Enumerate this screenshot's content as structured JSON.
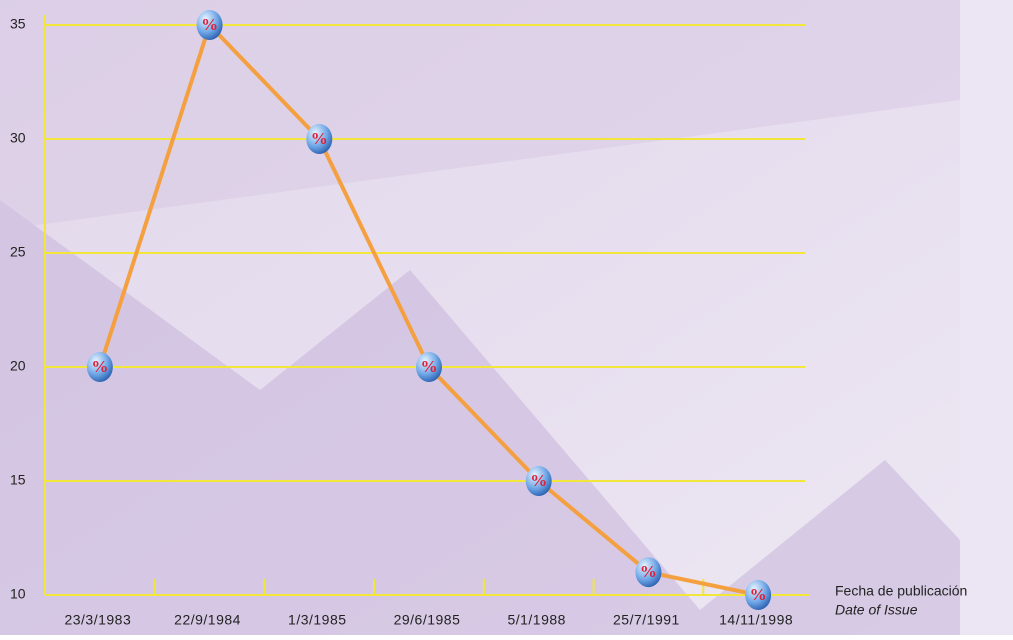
{
  "chart_data": {
    "type": "line",
    "x_label": "Fecha de publicación",
    "x_label_secondary": "Date of Issue",
    "categories": [
      "23/3/1983",
      "22/9/1984",
      "1/3/1985",
      "29/6/1985",
      "5/1/1988",
      "25/7/1991",
      "14/11/1998"
    ],
    "values": [
      20,
      35,
      30,
      20,
      15,
      11,
      10
    ],
    "color": "#f5a040",
    "grid_color": "#f2e63a",
    "marker_label": "%",
    "ylim": [
      10,
      35
    ],
    "yticks": [
      10,
      15,
      20,
      25,
      30,
      35
    ],
    "grid": true
  }
}
